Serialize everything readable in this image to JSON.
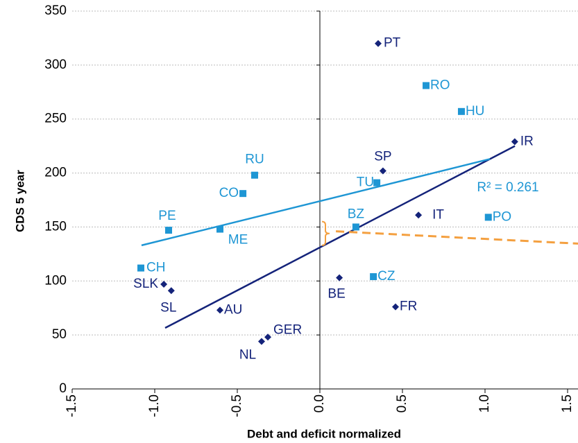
{
  "chart_data": {
    "type": "scatter",
    "xlabel": "Debt and deficit normalized",
    "ylabel": "CDS 5 year",
    "xlim": [
      -1.5,
      1.5
    ],
    "ylim": [
      0,
      350
    ],
    "xticks": [
      -1.5,
      {
        "value": -1,
        "label": "-1.0"
      },
      -0.5,
      {
        "value": 0,
        "label": "0.0"
      },
      0.5,
      {
        "value": 1,
        "label": "1.0"
      },
      1.5
    ],
    "yticks": [
      0,
      50,
      100,
      150,
      200,
      250,
      300,
      350
    ],
    "grid": true,
    "series": [
      {
        "marker": "diamond",
        "color": "#14237a",
        "labels": [
          "PT",
          "SP",
          "IR",
          "IT",
          "BE",
          "FR",
          "SLK",
          "SL",
          "AU",
          "GER",
          "NL"
        ],
        "x": [
          0.353,
          0.382,
          1.18,
          0.597,
          0.118,
          0.458,
          -0.945,
          -0.9,
          -0.605,
          -0.315,
          -0.353
        ],
        "values": [
          320,
          202,
          229,
          161,
          103,
          76,
          97,
          91,
          73,
          48,
          44
        ]
      },
      {
        "marker": "square",
        "color": "#1e96d4",
        "labels": [
          "RO",
          "HU",
          "TU",
          "RU",
          "CO",
          "PE",
          "ME",
          "BZ",
          "PO",
          "CZ",
          "CH"
        ],
        "x": [
          0.643,
          0.857,
          0.345,
          -0.395,
          -0.466,
          -0.916,
          -0.605,
          0.218,
          1.02,
          0.324,
          -1.084
        ],
        "values": [
          281,
          257,
          191,
          198,
          181,
          147,
          148,
          150,
          159,
          104,
          112
        ]
      }
    ],
    "trendlines": [
      {
        "color": "#14237a",
        "x": [
          -0.937,
          1.181
        ],
        "y": [
          56.5,
          225
        ]
      },
      {
        "color": "#1e96d4",
        "x": [
          -1.08,
          1.03
        ],
        "y": [
          133,
          213
        ]
      },
      {
        "color": "#f4a040",
        "dashed": true,
        "x": [
          0.097,
          1.563
        ],
        "y": [
          146,
          134.6
        ]
      }
    ],
    "brace": {
      "color": "#f4a040",
      "x": 0,
      "y": [
        133,
        155
      ]
    },
    "annotation": "R² = 0.261"
  }
}
